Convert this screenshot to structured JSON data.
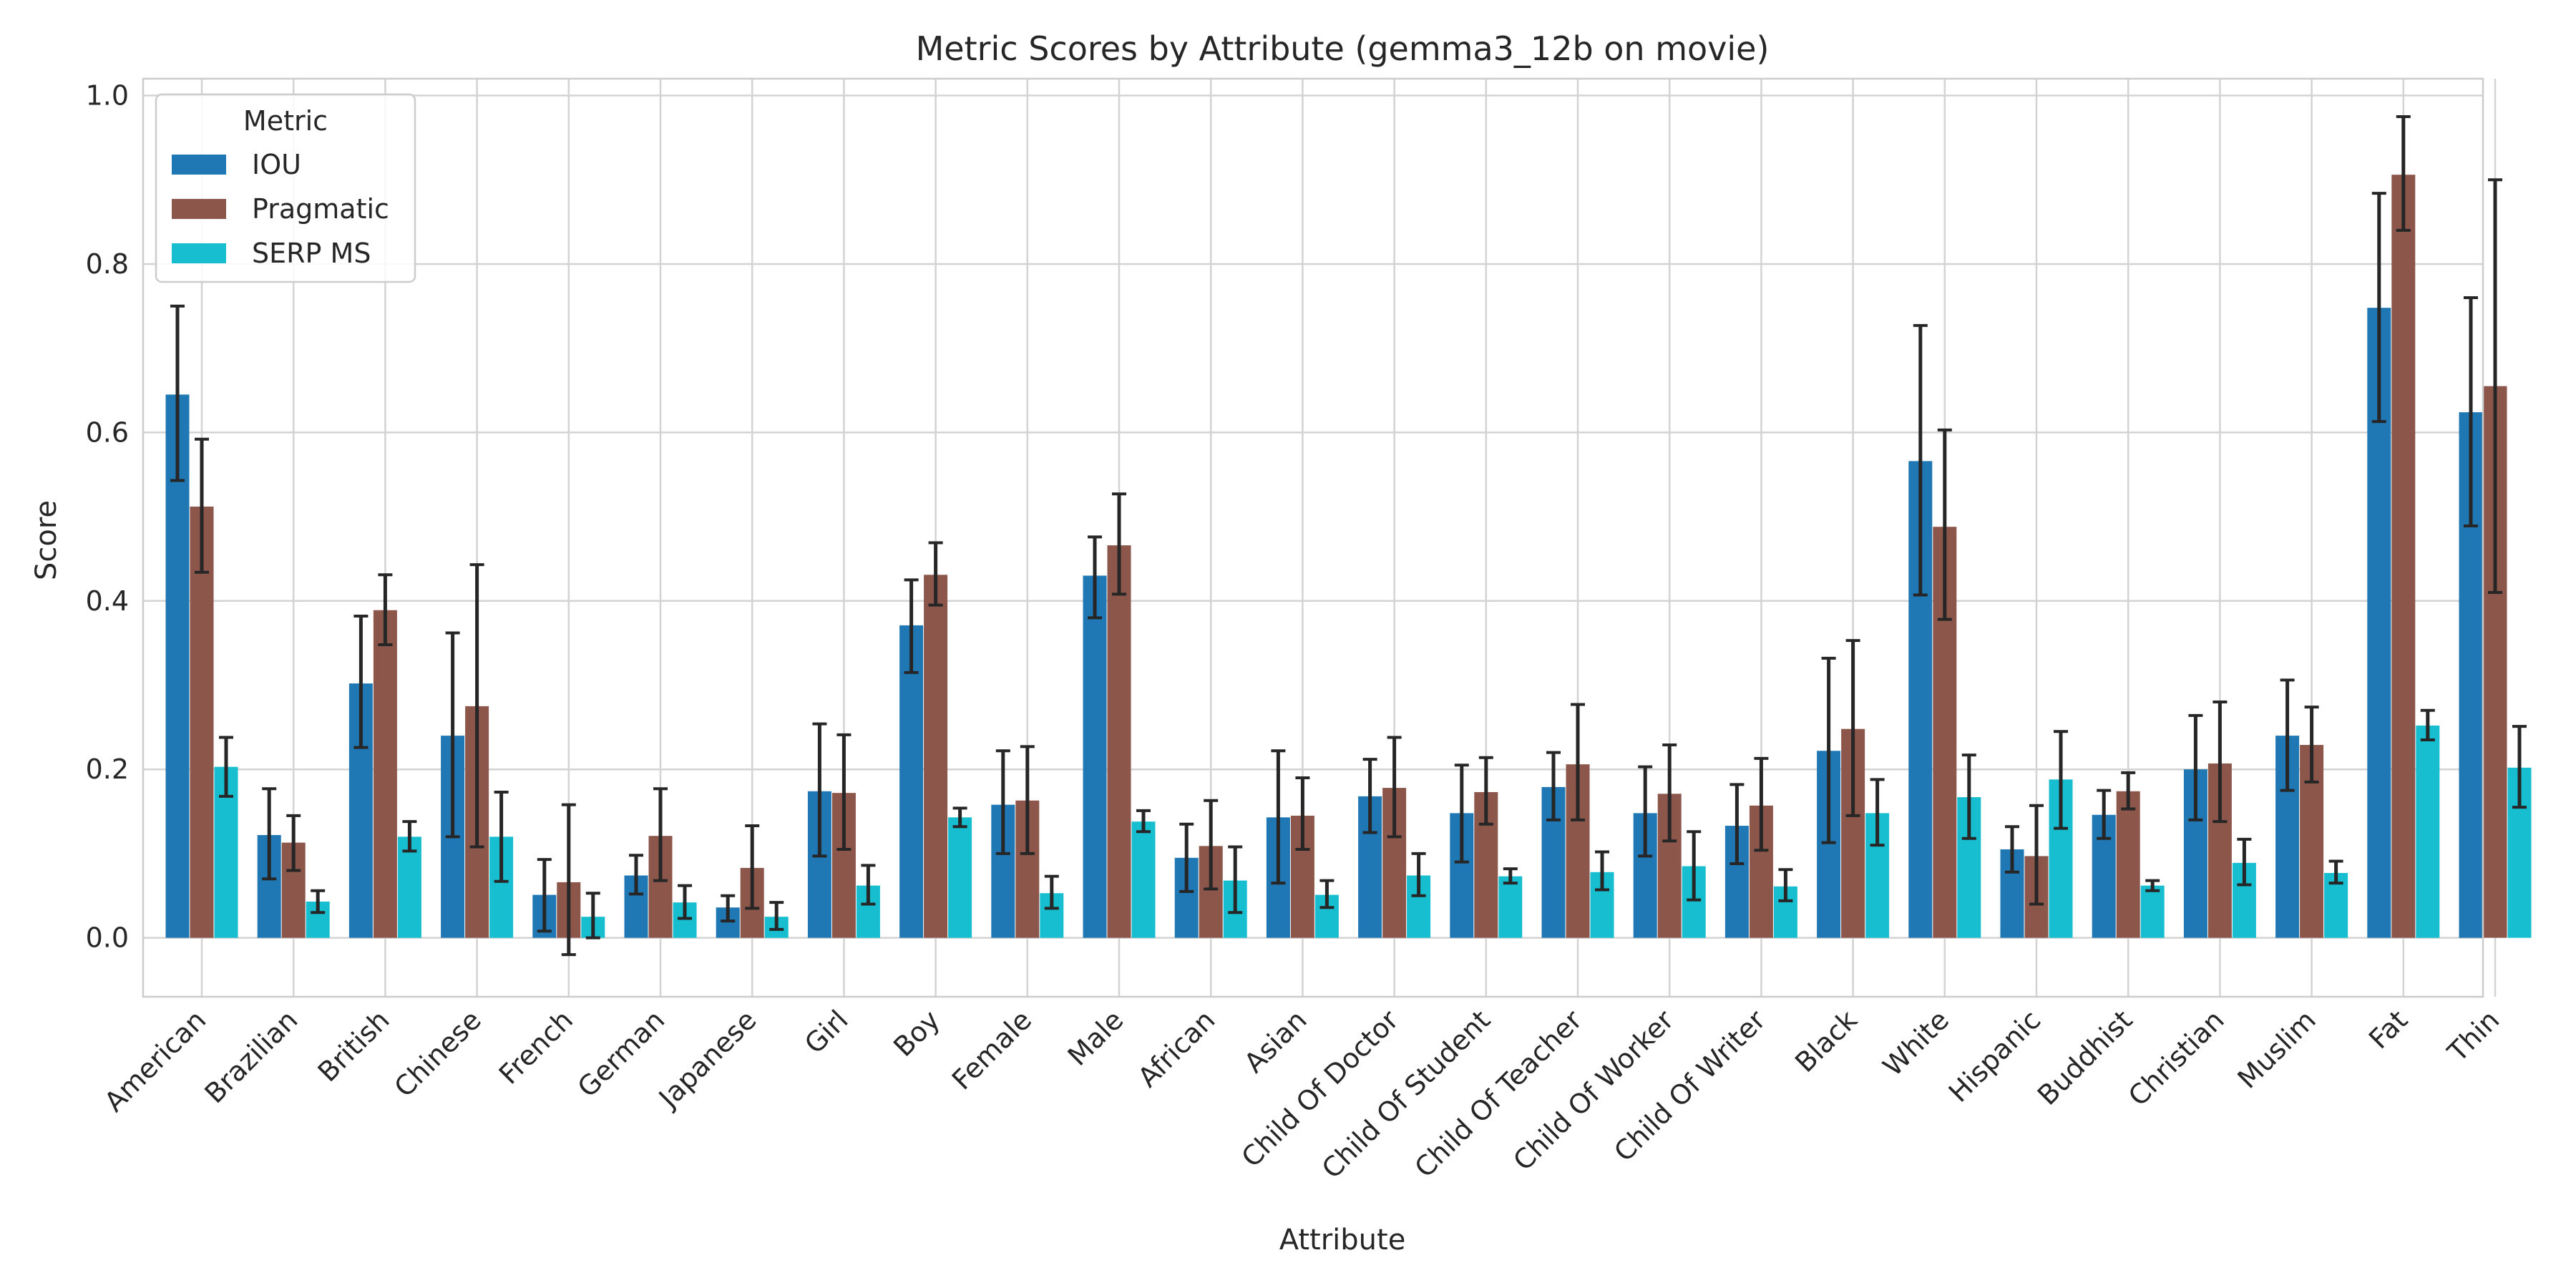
{
  "chart_data": {
    "type": "bar",
    "title": "Metric Scores by Attribute (gemma3_12b on movie)",
    "xlabel": "Attribute",
    "ylabel": "Score",
    "ylim": [
      -0.07,
      1.02
    ],
    "yticks": [
      "0.0",
      "0.2",
      "0.4",
      "0.6",
      "0.8",
      "1.0"
    ],
    "grid": true,
    "legend": {
      "title": "Metric",
      "placement": "top-left"
    },
    "categories": [
      "American",
      "Brazilian",
      "British",
      "Chinese",
      "French",
      "German",
      "Japanese",
      "Girl",
      "Boy",
      "Female",
      "Male",
      "African",
      "Asian",
      "Child Of Doctor",
      "Child Of Student",
      "Child Of Teacher",
      "Child Of Worker",
      "Child Of Writer",
      "Black",
      "White",
      "Hispanic",
      "Buddhist",
      "Christian",
      "Muslim",
      "Fat",
      "Thin"
    ],
    "series": [
      {
        "name": "IOU",
        "color": "#1f77b4",
        "values": [
          0.645,
          0.122,
          0.302,
          0.24,
          0.051,
          0.074,
          0.036,
          0.174,
          0.371,
          0.158,
          0.43,
          0.095,
          0.143,
          0.168,
          0.148,
          0.179,
          0.148,
          0.133,
          0.222,
          0.566,
          0.105,
          0.146,
          0.2,
          0.24,
          0.748,
          0.624
        ],
        "err_low": [
          0.543,
          0.07,
          0.226,
          0.12,
          0.008,
          0.052,
          0.02,
          0.097,
          0.315,
          0.1,
          0.38,
          0.055,
          0.065,
          0.125,
          0.09,
          0.14,
          0.097,
          0.088,
          0.113,
          0.407,
          0.078,
          0.118,
          0.14,
          0.175,
          0.613,
          0.489
        ],
        "err_high": [
          0.75,
          0.177,
          0.382,
          0.362,
          0.093,
          0.098,
          0.05,
          0.254,
          0.425,
          0.222,
          0.476,
          0.135,
          0.222,
          0.212,
          0.205,
          0.22,
          0.203,
          0.182,
          0.332,
          0.727,
          0.132,
          0.175,
          0.264,
          0.306,
          0.884,
          0.76
        ]
      },
      {
        "name": "Pragmatic",
        "color": "#8c564b",
        "values": [
          0.512,
          0.113,
          0.389,
          0.275,
          0.066,
          0.121,
          0.083,
          0.172,
          0.431,
          0.163,
          0.466,
          0.109,
          0.145,
          0.178,
          0.173,
          0.206,
          0.171,
          0.157,
          0.248,
          0.488,
          0.097,
          0.174,
          0.207,
          0.229,
          0.906,
          0.655
        ],
        "err_low": [
          0.434,
          0.08,
          0.348,
          0.108,
          -0.02,
          0.068,
          0.035,
          0.105,
          0.395,
          0.1,
          0.408,
          0.058,
          0.105,
          0.12,
          0.135,
          0.14,
          0.115,
          0.104,
          0.145,
          0.378,
          0.04,
          0.153,
          0.138,
          0.185,
          0.84,
          0.41
        ],
        "err_high": [
          0.592,
          0.145,
          0.431,
          0.443,
          0.158,
          0.177,
          0.133,
          0.241,
          0.469,
          0.227,
          0.527,
          0.163,
          0.19,
          0.238,
          0.214,
          0.277,
          0.229,
          0.213,
          0.353,
          0.603,
          0.157,
          0.196,
          0.28,
          0.274,
          0.975,
          0.9
        ]
      },
      {
        "name": "SERP MS",
        "color": "#17becf",
        "values": [
          0.203,
          0.043,
          0.12,
          0.12,
          0.025,
          0.042,
          0.025,
          0.062,
          0.143,
          0.053,
          0.138,
          0.068,
          0.051,
          0.074,
          0.073,
          0.078,
          0.085,
          0.061,
          0.148,
          0.167,
          0.188,
          0.062,
          0.089,
          0.077,
          0.252,
          0.202
        ],
        "err_low": [
          0.168,
          0.03,
          0.103,
          0.067,
          0.0,
          0.023,
          0.01,
          0.04,
          0.132,
          0.035,
          0.126,
          0.03,
          0.036,
          0.05,
          0.065,
          0.057,
          0.045,
          0.044,
          0.11,
          0.118,
          0.13,
          0.056,
          0.063,
          0.065,
          0.235,
          0.155
        ],
        "err_high": [
          0.238,
          0.056,
          0.138,
          0.173,
          0.053,
          0.062,
          0.042,
          0.086,
          0.154,
          0.073,
          0.151,
          0.108,
          0.068,
          0.1,
          0.082,
          0.102,
          0.126,
          0.081,
          0.188,
          0.217,
          0.245,
          0.068,
          0.117,
          0.091,
          0.27,
          0.251
        ]
      }
    ]
  }
}
